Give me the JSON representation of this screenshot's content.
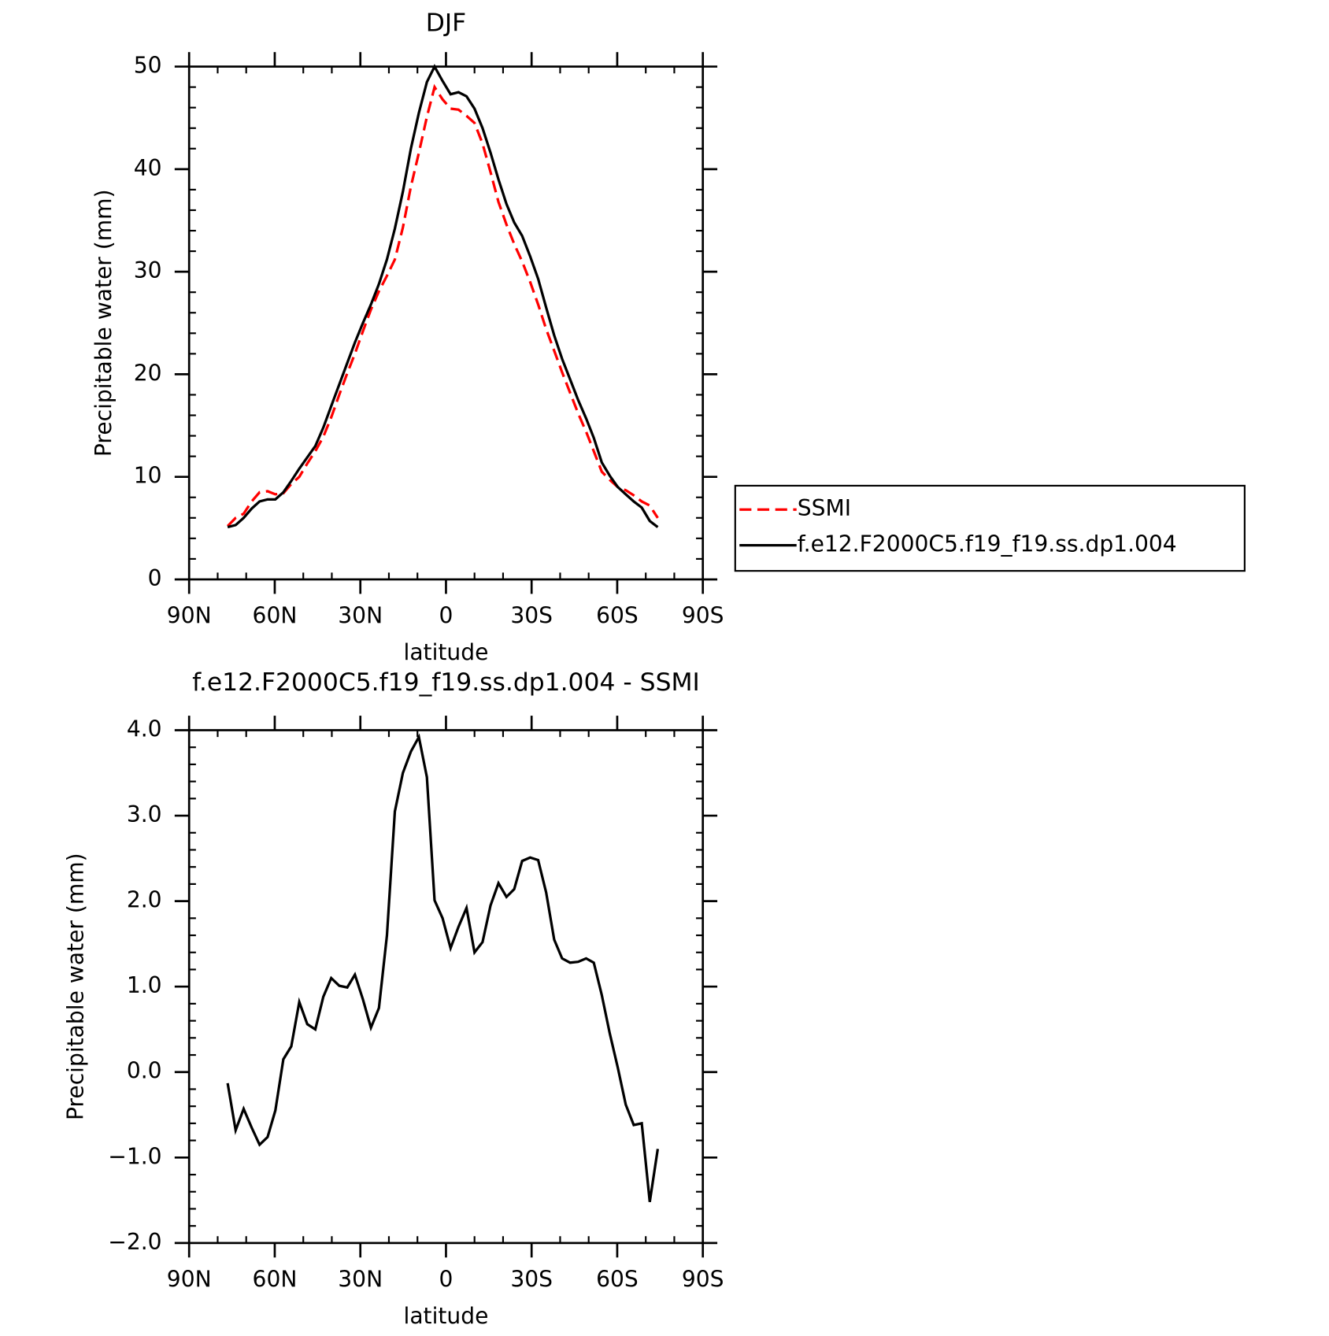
{
  "chart_data": [
    {
      "type": "line",
      "title": "DJF",
      "xlabel": "latitude",
      "ylabel": "Precipitable water (mm)",
      "x": [
        76.5,
        73.7,
        70.9,
        68.1,
        65.3,
        62.5,
        59.8,
        57.0,
        54.2,
        51.4,
        48.6,
        45.8,
        43.0,
        40.2,
        37.4,
        34.6,
        31.9,
        29.1,
        26.3,
        23.5,
        20.7,
        17.9,
        15.1,
        12.3,
        9.5,
        6.7,
        4.0,
        1.2,
        -1.6,
        -4.4,
        -7.2,
        -10.0,
        -12.8,
        -15.6,
        -18.4,
        -21.2,
        -23.9,
        -26.7,
        -29.5,
        -32.3,
        -35.1,
        -37.9,
        -40.7,
        -43.5,
        -46.3,
        -49.1,
        -51.8,
        -54.6,
        -57.4,
        -60.2,
        -63.0,
        -65.8,
        -68.6,
        -71.4,
        -74.2
      ],
      "series": [
        {
          "name": "SSMI",
          "color": "#ff0000",
          "dashed": true,
          "values": [
            5.2,
            6.0,
            6.4,
            7.6,
            8.5,
            8.6,
            8.3,
            8.4,
            9.3,
            10.0,
            11.3,
            12.5,
            13.9,
            15.8,
            18.0,
            20.1,
            22.0,
            24.2,
            26.3,
            28.1,
            29.6,
            31.2,
            34.3,
            38.3,
            41.6,
            45.1,
            48.0,
            46.8,
            45.9,
            45.8,
            45.2,
            44.5,
            42.5,
            39.7,
            36.8,
            34.6,
            32.7,
            31.0,
            29.0,
            26.8,
            24.4,
            22.3,
            20.2,
            18.2,
            16.2,
            14.4,
            12.5,
            10.5,
            9.7,
            9.0,
            8.7,
            8.2,
            7.6,
            7.2,
            6.0
          ]
        },
        {
          "name": "f.e12.F2000C5.f19_f19.ss.dp1.004",
          "color": "#000000",
          "dashed": false,
          "values": [
            5.1,
            5.3,
            6.0,
            6.9,
            7.6,
            7.8,
            7.8,
            8.5,
            9.6,
            10.8,
            11.9,
            13.0,
            14.8,
            16.9,
            19.0,
            21.1,
            23.1,
            25.0,
            26.8,
            28.8,
            31.2,
            34.2,
            37.8,
            42.0,
            45.5,
            48.5,
            50.0,
            48.6,
            47.3,
            47.5,
            47.1,
            45.9,
            44.0,
            41.6,
            39.0,
            36.6,
            34.8,
            33.5,
            31.5,
            29.3,
            26.5,
            23.8,
            21.5,
            19.5,
            17.5,
            15.7,
            13.8,
            11.4,
            10.1,
            9.0,
            8.3,
            7.6,
            7.0,
            5.7,
            5.1
          ]
        }
      ],
      "xlim": [
        90,
        -90
      ],
      "xticks": [
        {
          "value": 90,
          "label": "90N"
        },
        {
          "value": 60,
          "label": "60N"
        },
        {
          "value": 30,
          "label": "30N"
        },
        0,
        {
          "value": -30,
          "label": "30S"
        },
        {
          "value": -60,
          "label": "60S"
        },
        {
          "value": -90,
          "label": "90S"
        }
      ],
      "xminor_ticks": [
        80,
        70,
        50,
        40,
        20,
        10,
        -10,
        -20,
        -40,
        -50,
        -70,
        -80
      ],
      "ylim": [
        0,
        50
      ],
      "yticks": [
        0,
        10,
        20,
        30,
        40,
        50
      ],
      "yminor_ticks": [
        2,
        4,
        6,
        8,
        12,
        14,
        16,
        18,
        22,
        24,
        26,
        28,
        32,
        34,
        36,
        38,
        42,
        44,
        46,
        48
      ],
      "legend": "right"
    },
    {
      "type": "line",
      "title": "f.e12.F2000C5.f19_f19.ss.dp1.004 - SSMI",
      "xlabel": "latitude",
      "ylabel": "Precipitable water (mm)",
      "x": [
        76.5,
        73.7,
        70.9,
        68.1,
        65.3,
        62.5,
        59.8,
        57.0,
        54.2,
        51.4,
        48.6,
        45.8,
        43.0,
        40.2,
        37.4,
        34.6,
        31.9,
        29.1,
        26.3,
        23.5,
        20.7,
        17.9,
        15.1,
        12.3,
        9.5,
        6.7,
        4.0,
        1.2,
        -1.6,
        -4.4,
        -7.2,
        -10.0,
        -12.8,
        -15.6,
        -18.4,
        -21.2,
        -23.9,
        -26.7,
        -29.5,
        -32.3,
        -35.1,
        -37.9,
        -40.7,
        -43.5,
        -46.3,
        -49.1,
        -51.8,
        -54.6,
        -57.4,
        -60.2,
        -63.0,
        -65.8,
        -68.6,
        -71.4,
        -74.2
      ],
      "series": [
        {
          "color": "#000000",
          "dashed": false,
          "values": [
            -0.13,
            -0.68,
            -0.43,
            -0.65,
            -0.85,
            -0.76,
            -0.45,
            0.15,
            0.3,
            0.82,
            0.56,
            0.5,
            0.88,
            1.1,
            1.01,
            0.99,
            1.14,
            0.85,
            0.52,
            0.75,
            1.6,
            3.05,
            3.5,
            3.75,
            3.92,
            3.45,
            2.01,
            1.8,
            1.45,
            1.7,
            1.92,
            1.4,
            1.52,
            1.95,
            2.21,
            2.05,
            2.14,
            2.47,
            2.51,
            2.48,
            2.1,
            1.55,
            1.33,
            1.28,
            1.29,
            1.33,
            1.28,
            0.9,
            0.45,
            0.05,
            -0.38,
            -0.62,
            -0.6,
            -1.52,
            -0.9
          ]
        }
      ],
      "xlim": [
        90,
        -90
      ],
      "xticks": [
        {
          "value": 90,
          "label": "90N"
        },
        {
          "value": 60,
          "label": "60N"
        },
        {
          "value": 30,
          "label": "30N"
        },
        0,
        {
          "value": -30,
          "label": "30S"
        },
        {
          "value": -60,
          "label": "60S"
        },
        {
          "value": -90,
          "label": "90S"
        }
      ],
      "xminor_ticks": [
        80,
        70,
        50,
        40,
        20,
        10,
        -10,
        -20,
        -40,
        -50,
        -70,
        -80
      ],
      "ylim": [
        -2,
        4
      ],
      "yticks": [
        {
          "value": -2,
          "label": "−2.0"
        },
        {
          "value": -1,
          "label": "−1.0"
        },
        {
          "value": 0,
          "label": "0.0"
        },
        {
          "value": 1,
          "label": "1.0"
        },
        {
          "value": 2,
          "label": "2.0"
        },
        {
          "value": 3,
          "label": "3.0"
        },
        {
          "value": 4,
          "label": "4.0"
        }
      ],
      "yminor_ticks": [
        -1.8,
        -1.6,
        -1.4,
        -1.2,
        -0.8,
        -0.6,
        -0.4,
        -0.2,
        0.2,
        0.4,
        0.6,
        0.8,
        1.2,
        1.4,
        1.6,
        1.8,
        2.2,
        2.4,
        2.6,
        2.8,
        3.2,
        3.4,
        3.6,
        3.8
      ]
    }
  ]
}
